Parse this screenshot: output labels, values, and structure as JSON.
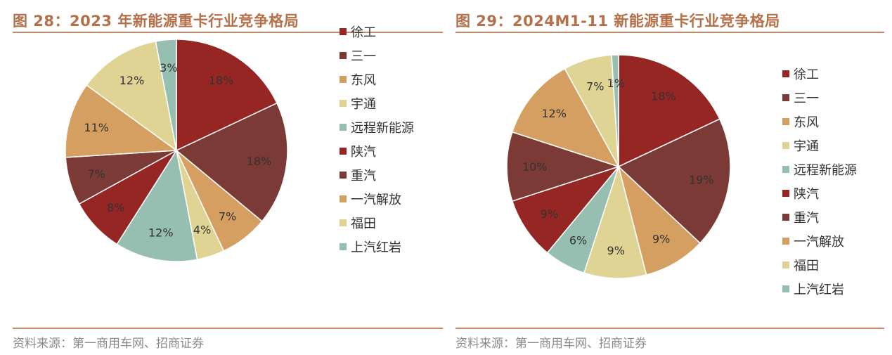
{
  "source": "资料来源：第一商用车网、招商证券",
  "chart_data": [
    {
      "type": "pie",
      "title": "图 28：2023 年新能源重卡行业竞争格局",
      "categories": [
        "徐工",
        "三一",
        "东风",
        "宇通",
        "远程新能源",
        "陕汽",
        "重汽",
        "一汽解放",
        "福田",
        "上汽红岩"
      ],
      "values": [
        18,
        18,
        11,
        12,
        12,
        8,
        7,
        7,
        4,
        3
      ],
      "value_labels": [
        "18%",
        "18%",
        "11%",
        "12%",
        "12%",
        "8%",
        "7%",
        "7%",
        "4%",
        "3%"
      ],
      "slice_order": [
        0,
        1,
        7,
        8,
        4,
        5,
        6,
        2,
        3,
        9
      ],
      "legend_position": "right",
      "source": "资料来源：第一商用车网、招商证券"
    },
    {
      "type": "pie",
      "title": "图 29：2024M1-11 新能源重卡行业竞争格局",
      "categories": [
        "徐工",
        "三一",
        "东风",
        "宇通",
        "远程新能源",
        "陕汽",
        "重汽",
        "一汽解放",
        "福田",
        "上汽红岩"
      ],
      "values": [
        18,
        19,
        9,
        9,
        6,
        9,
        10,
        12,
        7,
        1
      ],
      "value_labels": [
        "18%",
        "19%",
        "9%",
        "9%",
        "6%",
        "9%",
        "10%",
        "12%",
        "7%",
        "1%"
      ],
      "slice_order": [
        0,
        1,
        2,
        3,
        4,
        5,
        6,
        7,
        8,
        9
      ],
      "legend_position": "right",
      "source": "资料来源：第一商用车网、招商证券"
    }
  ],
  "colors": {
    "palette": [
      "#962623",
      "#7b3a35",
      "#d69f62",
      "#e0d494",
      "#97bfb1",
      "#962623",
      "#7b3a35",
      "#d69f62",
      "#e0d494",
      "#97bfb1"
    ],
    "title": "#b5704a",
    "rule": "#c98a6a"
  }
}
